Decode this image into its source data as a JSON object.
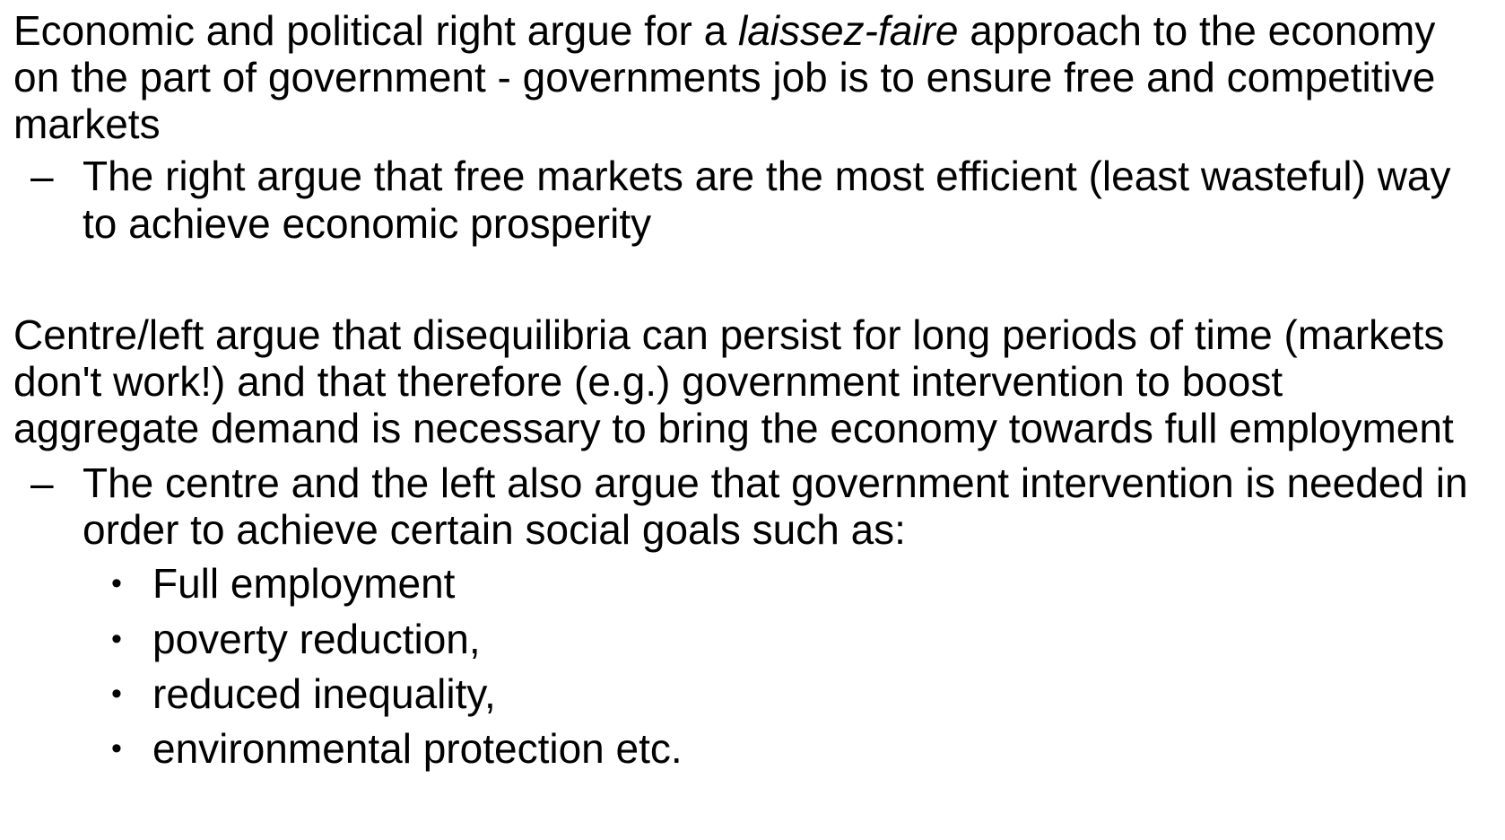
{
  "para1": {
    "line1_pre": "Economic and political right argue for a ",
    "line1_italic": "laissez-faire",
    "line1_post": " approach to the economy",
    "line2": "on the part of government - governments job is to ensure free and competitive",
    "line3": "markets"
  },
  "sub1": {
    "marker": "–",
    "line1": "The right argue that free markets are the most efficient (least wasteful) way",
    "line2": "to achieve economic prosperity"
  },
  "para2": {
    "line1": "Centre/left argue that disequilibria can persist for long periods of time (markets",
    "line2": "don't work!) and that therefore (e.g.) government intervention to boost",
    "line3": "aggregate demand is necessary to bring the economy towards full employment"
  },
  "sub2": {
    "marker": "–",
    "line1": "The centre and the left also argue that government intervention is needed in",
    "line2": "order to achieve certain social goals such as:"
  },
  "bullets": {
    "marker": "•",
    "items": [
      "Full employment",
      "poverty reduction,",
      "reduced inequality,",
      "environmental protection etc."
    ]
  }
}
